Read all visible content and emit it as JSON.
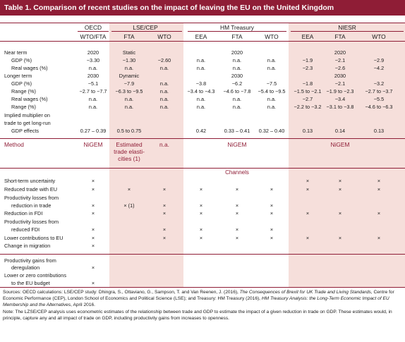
{
  "title": "Table 1. Comparison of recent studies on the impact of leaving the EU on the United Kingdom",
  "orgs": [
    "OECD",
    "LSE/CEP",
    "HM Treasury",
    "NIESR"
  ],
  "scenarios": [
    "WTO/FTA",
    "FTA",
    "WTO",
    "EEA",
    "FTA",
    "WTO",
    "EEA",
    "FTA",
    "WTO"
  ],
  "rows": [
    {
      "label": "Near term",
      "cells": [
        "2020",
        "Static",
        "",
        "",
        "2020",
        "",
        "",
        "2020",
        ""
      ]
    },
    {
      "label": "GDP (%)",
      "cells": [
        "−3.30",
        "−1.30",
        "−2.60",
        "n.a.",
        "n.a.",
        "n.a.",
        "−1.9",
        "−2.1",
        "−2.9"
      ]
    },
    {
      "label": "Real wages (%)",
      "cells": [
        "n.a.",
        "n.a.",
        "n.a.",
        "n.a.",
        "n.a.",
        "n.a.",
        "−2.3",
        "−2.6",
        "−4.2"
      ]
    },
    {
      "label": "Longer term",
      "cells": [
        "2030",
        "Dynamic",
        "",
        "",
        "2030",
        "",
        "",
        "2030",
        ""
      ]
    },
    {
      "label": "GDP (%)",
      "cells": [
        "−5.1",
        "−7.9",
        "n.a.",
        "−3.8",
        "−6.2",
        "−7.5",
        "−1.8",
        "−2.1",
        "−3.2"
      ]
    },
    {
      "label": "Range (%)",
      "cells": [
        "−2.7 to −7.7",
        "−6.3 to −9.5",
        "n.a.",
        "−3.4 to −4.3",
        "−4.6 to −7.8",
        "−5.4 to −9.5",
        "−1.5 to −2.1",
        "−1.9 to −2.3",
        "−2.7 to −3.7"
      ]
    },
    {
      "label": "Real wages (%)",
      "cells": [
        "n.a.",
        "n.a.",
        "n.a.",
        "n.a.",
        "n.a.",
        "n.a.",
        "−2.7",
        "−3.4",
        "−5.5"
      ]
    },
    {
      "label": "Range (%)",
      "cells": [
        "n.a.",
        "n.a.",
        "n.a.",
        "n.a.",
        "n.a.",
        "n.a.",
        "−2.2 to −3.2",
        "−3.1 to −3.8",
        "−4.6 to −6.3"
      ]
    }
  ],
  "multiplier_label": [
    "Implied multiplier on",
    "trade to get long-run",
    "GDP effects"
  ],
  "multiplier_values": [
    "0.27 – 0.39",
    "0.5 to 0.75",
    "",
    "0.42",
    "0.33 – 0.41",
    "0.32 – 0.40",
    "0.13",
    "0.14",
    "0.13"
  ],
  "method": {
    "label": "Method",
    "oecd": "NiGEM",
    "lse_fta": [
      "Estimated",
      "trade elasti-",
      "cities (1)"
    ],
    "lse_wto": "n.a.",
    "hmt": "NiGEM",
    "niesr": "NiGEM"
  },
  "channels_heading": "Channels",
  "channels": [
    {
      "label": [
        "Short-term uncertainty"
      ],
      "marks": [
        "×",
        "",
        "",
        "",
        "",
        "",
        "×",
        "×",
        "×"
      ]
    },
    {
      "label": [
        "Reduced trade with EU"
      ],
      "marks": [
        "×",
        "×",
        "×",
        "×",
        "×",
        "×",
        "×",
        "×",
        "×"
      ]
    },
    {
      "label": [
        "Productivity losses from",
        "reduction in trade"
      ],
      "marks": [
        "×",
        "× (1)",
        "×",
        "×",
        "×",
        "×",
        "",
        "",
        ""
      ]
    },
    {
      "label": [
        "Reduction in FDI"
      ],
      "marks": [
        "×",
        "",
        "×",
        "×",
        "×",
        "×",
        "×",
        "×",
        "×"
      ]
    },
    {
      "label": [
        "Productivity losses from",
        "reduced FDI"
      ],
      "marks": [
        "×",
        "",
        "×",
        "×",
        "×",
        "×",
        "",
        "",
        ""
      ]
    },
    {
      "label": [
        "Lower contributions to EU"
      ],
      "marks": [
        "×",
        "",
        "×",
        "×",
        "×",
        "×",
        "×",
        "×",
        "×"
      ]
    },
    {
      "label": [
        "Change in migration"
      ],
      "marks": [
        "×",
        "",
        "",
        "",
        "",
        "",
        "",
        "",
        ""
      ]
    },
    {
      "label": [
        "Productivity gains from",
        "deregulation"
      ],
      "marks": [
        "×",
        "",
        "",
        "",
        "",
        "",
        "",
        "",
        ""
      ]
    },
    {
      "label": [
        "Lower or zero contributions",
        "to the EU budget"
      ],
      "marks": [
        "×",
        "",
        "",
        "",
        "",
        "",
        "",
        "",
        ""
      ]
    }
  ],
  "sources": {
    "s1": "Sources: OECD calculations: LSE/CEP study: Dhingra, S., Ottaviano, G., Sampson, T. and Van Reenen, J. (2016), ",
    "s1_italic": "The Consequences of Brexit for UK Trade and Living Standards",
    "s2": ", Centre for Economic Performance (CEP), London School of Economics and Political Science (LSE); and Treasury: HM Treasury (2016), ",
    "s2_italic": "HM Treasury Analysis: the Long-Term Economic Impact of EU Membership and the Alternatives",
    "s3": ", April 2016.",
    "note": "Note: The LZSE/CEP analysis uses econometric estimates of the relationship between trade and GDP to estimate the impact of a given reduction in trade on GDP. These estimates would, in principle, capture any and all impact of trade on GDP, including productivity gains from increases to openness."
  }
}
